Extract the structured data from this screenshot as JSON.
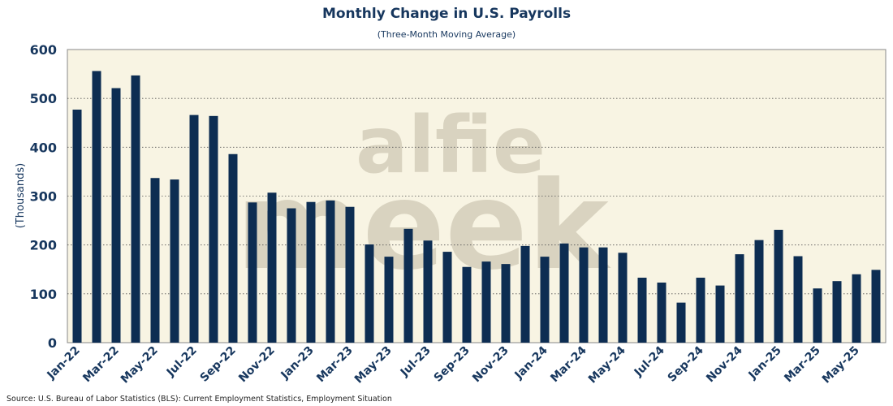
{
  "chart_data": {
    "type": "bar",
    "title": "Monthly Change in U.S. Payrolls",
    "subtitle": "(Three-Month Moving Average)",
    "xlabel": "",
    "ylabel": "(Thousands)",
    "ylim": [
      0,
      600
    ],
    "yticks": [
      0,
      100,
      200,
      300,
      400,
      500,
      600
    ],
    "grid": true,
    "categories": [
      "Jan-22",
      "Feb-22",
      "Mar-22",
      "Apr-22",
      "May-22",
      "Jun-22",
      "Jul-22",
      "Aug-22",
      "Sep-22",
      "Oct-22",
      "Nov-22",
      "Dec-22",
      "Jan-23",
      "Feb-23",
      "Mar-23",
      "Apr-23",
      "May-23",
      "Jun-23",
      "Jul-23",
      "Aug-23",
      "Sep-23",
      "Oct-23",
      "Nov-23",
      "Dec-23",
      "Jan-24",
      "Feb-24",
      "Mar-24",
      "Apr-24",
      "May-24",
      "Jun-24",
      "Jul-24",
      "Aug-24",
      "Sep-24",
      "Oct-24",
      "Nov-24",
      "Dec-24",
      "Jan-25",
      "Feb-25",
      "Mar-25",
      "Apr-25",
      "May-25",
      "Jun-25"
    ],
    "tick_labels": [
      "Jan-22",
      "Mar-22",
      "May-22",
      "Jul-22",
      "Sep-22",
      "Nov-22",
      "Jan-23",
      "Mar-23",
      "May-23",
      "Jul-23",
      "Sep-23",
      "Nov-23",
      "Jan-24",
      "Mar-24",
      "May-24",
      "Jul-24",
      "Sep-24",
      "Nov-24",
      "Jan-25",
      "Mar-25",
      "May-25"
    ],
    "values": [
      477,
      556,
      521,
      547,
      337,
      334,
      466,
      464,
      386,
      287,
      307,
      275,
      288,
      291,
      278,
      201,
      176,
      233,
      209,
      186,
      155,
      166,
      161,
      198,
      176,
      203,
      195,
      195,
      184,
      133,
      123,
      82,
      133,
      117,
      181,
      210,
      231,
      177,
      111,
      126,
      140,
      149
    ],
    "bar_color": "#0d2d52",
    "plot_background": "#f8f4e3",
    "watermark": [
      "alfie",
      "meek"
    ],
    "source": "Source: U.S. Bureau of Labor Statistics (BLS): Current Employment Statistics, Employment Situation"
  }
}
